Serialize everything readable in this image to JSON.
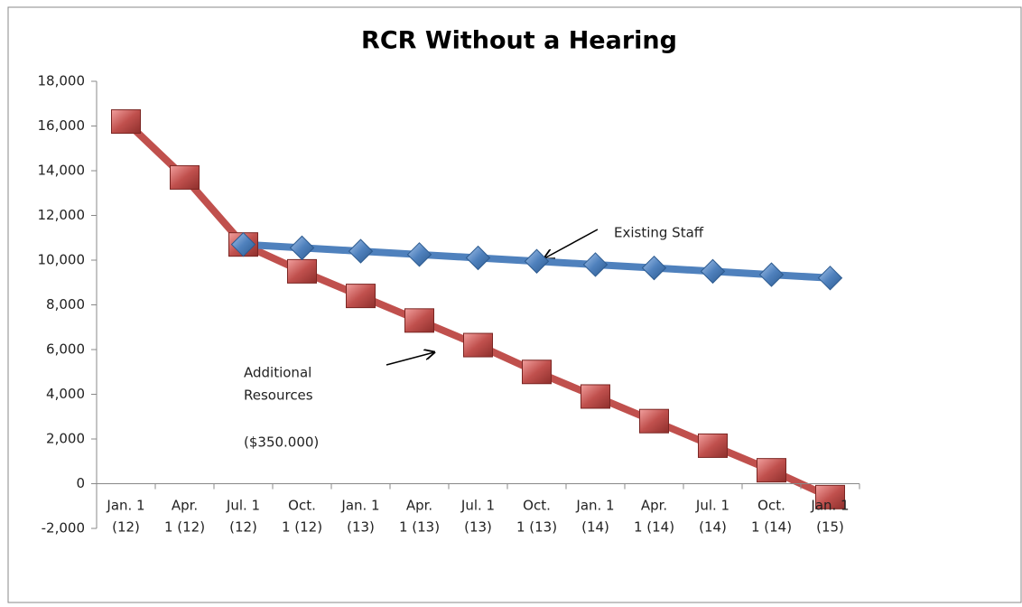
{
  "chart_data": {
    "type": "line",
    "title": "RCR Without a Hearing",
    "categories": [
      "Jan. 1\n(12)",
      "Apr.\n1 (12)",
      "Jul. 1\n(12)",
      "Oct.\n1 (12)",
      "Jan. 1\n(13)",
      "Apr.\n1 (13)",
      "Jul. 1\n(13)",
      "Oct.\n1 (13)",
      "Jan. 1\n(14)",
      "Apr.\n1 (14)",
      "Jul. 1\n(14)",
      "Oct.\n1 (14)",
      "Jan. 1\n(15)"
    ],
    "series": [
      {
        "name": "Additional Resources",
        "color": "#c0504d",
        "marker": "square",
        "values": [
          16200,
          13700,
          10700,
          9500,
          8400,
          7300,
          6200,
          5000,
          3900,
          2800,
          1700,
          600,
          -600
        ]
      },
      {
        "name": "Existing Staff",
        "color": "#4f81bd",
        "marker": "diamond",
        "values": [
          null,
          null,
          10700,
          10550,
          10400,
          10250,
          10100,
          9950,
          9800,
          9650,
          9500,
          9350,
          9200
        ]
      }
    ],
    "ylim": [
      -2000,
      18000
    ],
    "yticks": [
      {
        "value": -2000,
        "label": "-2,000"
      },
      0,
      {
        "value": 2000,
        "label": "2,000"
      },
      {
        "value": 4000,
        "label": "4,000"
      },
      {
        "value": 6000,
        "label": "6,000"
      },
      {
        "value": 8000,
        "label": "8,000"
      },
      {
        "value": 10000,
        "label": "10,000"
      },
      {
        "value": 12000,
        "label": "12,000"
      },
      {
        "value": 14000,
        "label": "14,000"
      },
      {
        "value": 16000,
        "label": "16,000"
      },
      {
        "value": 18000,
        "label": "18,000"
      }
    ],
    "annotations": {
      "existing": "Existing Staff",
      "additional_1": "Additional",
      "additional_2": "Resources",
      "cost": "($350.000)"
    }
  }
}
